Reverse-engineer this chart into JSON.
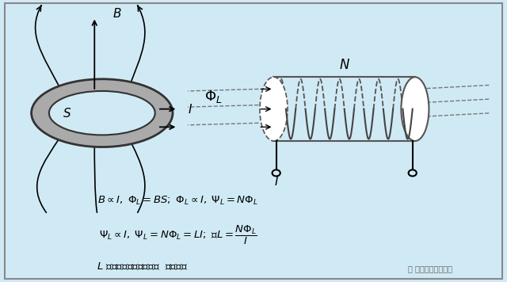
{
  "bg_color": "#d0eaf5",
  "title": "",
  "fig_width": 6.4,
  "fig_height": 3.56,
  "formula1": "$B \\propto I,\\; \\Phi_L = BS;\\; \\Phi_L \\propto I,\\; \\Psi_L = N\\Phi_L$",
  "formula2": "$\\Psi_L \\propto I,\\; \\Psi_L = N\\Phi_L = LI;\\; \\text{或} L = \\dfrac{N\\Phi_L}{I}$",
  "formula3": "$L$ 叫做线圈的自感系数，  简称自感",
  "watermark": "硬件十万个为什么"
}
